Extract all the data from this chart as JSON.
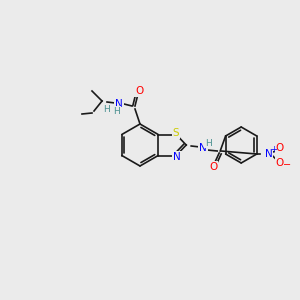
{
  "bg_color": "#ebebeb",
  "bond_color": "#1a1a1a",
  "atom_colors": {
    "O": "#ff0000",
    "N": "#0000ff",
    "S": "#cccc00",
    "H": "#4a9090",
    "C": "#1a1a1a",
    "plus": "#0000ff",
    "minus": "#ff0000"
  },
  "figsize": [
    3.0,
    3.0
  ],
  "dpi": 100,
  "lw": 1.2,
  "fontsize": 7.0,
  "r_hex": 18,
  "r_pent": 14
}
